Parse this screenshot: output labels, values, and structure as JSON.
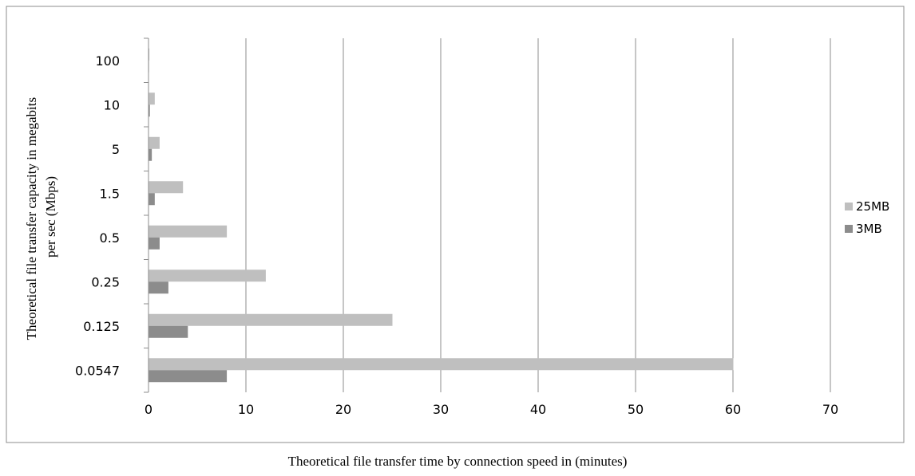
{
  "chart_data": {
    "type": "bar",
    "orientation": "horizontal",
    "title": "",
    "xlabel": "Theoretical file transfer time by connection speed in (minutes)",
    "ylabel": "Theoretical file transfer capacity in megabits per sec (Mbps)",
    "ylabel_lines": [
      "Theoretical file transfer capacity in megabits",
      "per sec (Mbps)"
    ],
    "categories": [
      "0.0547",
      "0.125",
      "0.25",
      "0.5",
      "1.5",
      "5",
      "10",
      "100"
    ],
    "series": [
      {
        "name": "25MB",
        "values": [
          60,
          25,
          12,
          8,
          3.5,
          1.1,
          0.6,
          0.05
        ]
      },
      {
        "name": "3MB",
        "values": [
          8,
          4,
          2,
          1.1,
          0.6,
          0.3,
          0.1,
          0.01
        ]
      }
    ],
    "xlim": [
      0,
      70
    ],
    "xticks": [
      0,
      10,
      20,
      30,
      40,
      50,
      60,
      70
    ],
    "grid": "vertical",
    "legend_position": "right"
  },
  "colors": {
    "series_25mb": "#bfbfbf",
    "series_3mb": "#8c8c8c",
    "grid": "#8c8c8c",
    "frame": "#8c8c8c",
    "text": "#000000"
  }
}
